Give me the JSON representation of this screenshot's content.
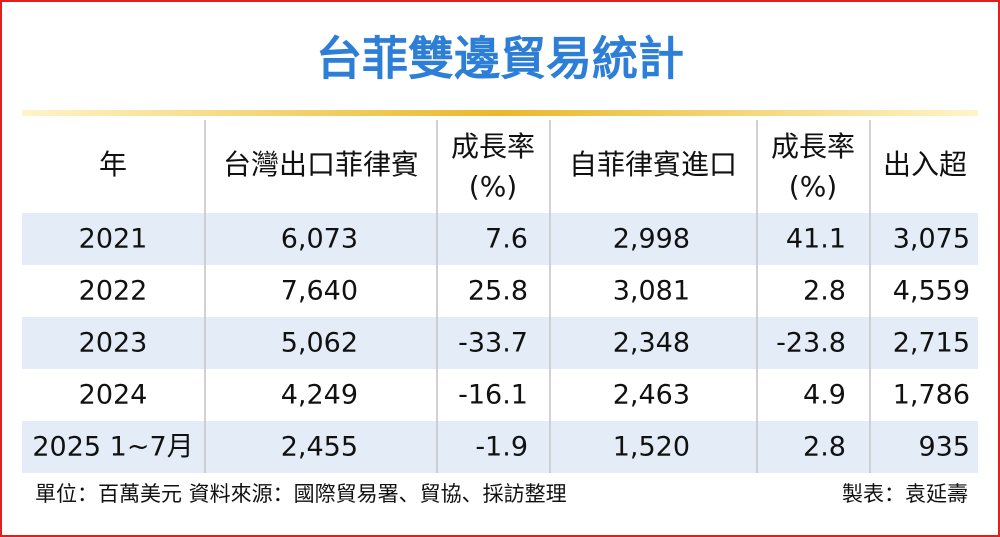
{
  "title": "台菲雙邊貿易統計",
  "table": {
    "header": [
      [
        "年"
      ],
      [
        "台灣出口菲律賓"
      ],
      [
        "成長率",
        "(%)"
      ],
      [
        "自菲律賓進口"
      ],
      [
        "成長率",
        "(%)"
      ],
      [
        "出入超"
      ]
    ],
    "rows": [
      [
        "2021",
        "6,073",
        "7.6",
        "2,998",
        "41.1",
        "3,075"
      ],
      [
        "2022",
        "7,640",
        "25.8",
        "3,081",
        "2.8",
        "4,559"
      ],
      [
        "2023",
        "5,062",
        "-33.7",
        "2,348",
        "-23.8",
        "2,715"
      ],
      [
        "2024",
        "4,249",
        "-16.1",
        "2,463",
        "4.9",
        "1,786"
      ],
      [
        "2025 1~7月",
        "2,455",
        "-1.9",
        "1,520",
        "2.8",
        "935"
      ]
    ]
  },
  "footer": {
    "source": "單位：百萬美元  資料來源：國際貿易署、貿協、採訪整理",
    "credit": "製表：袁延壽"
  }
}
